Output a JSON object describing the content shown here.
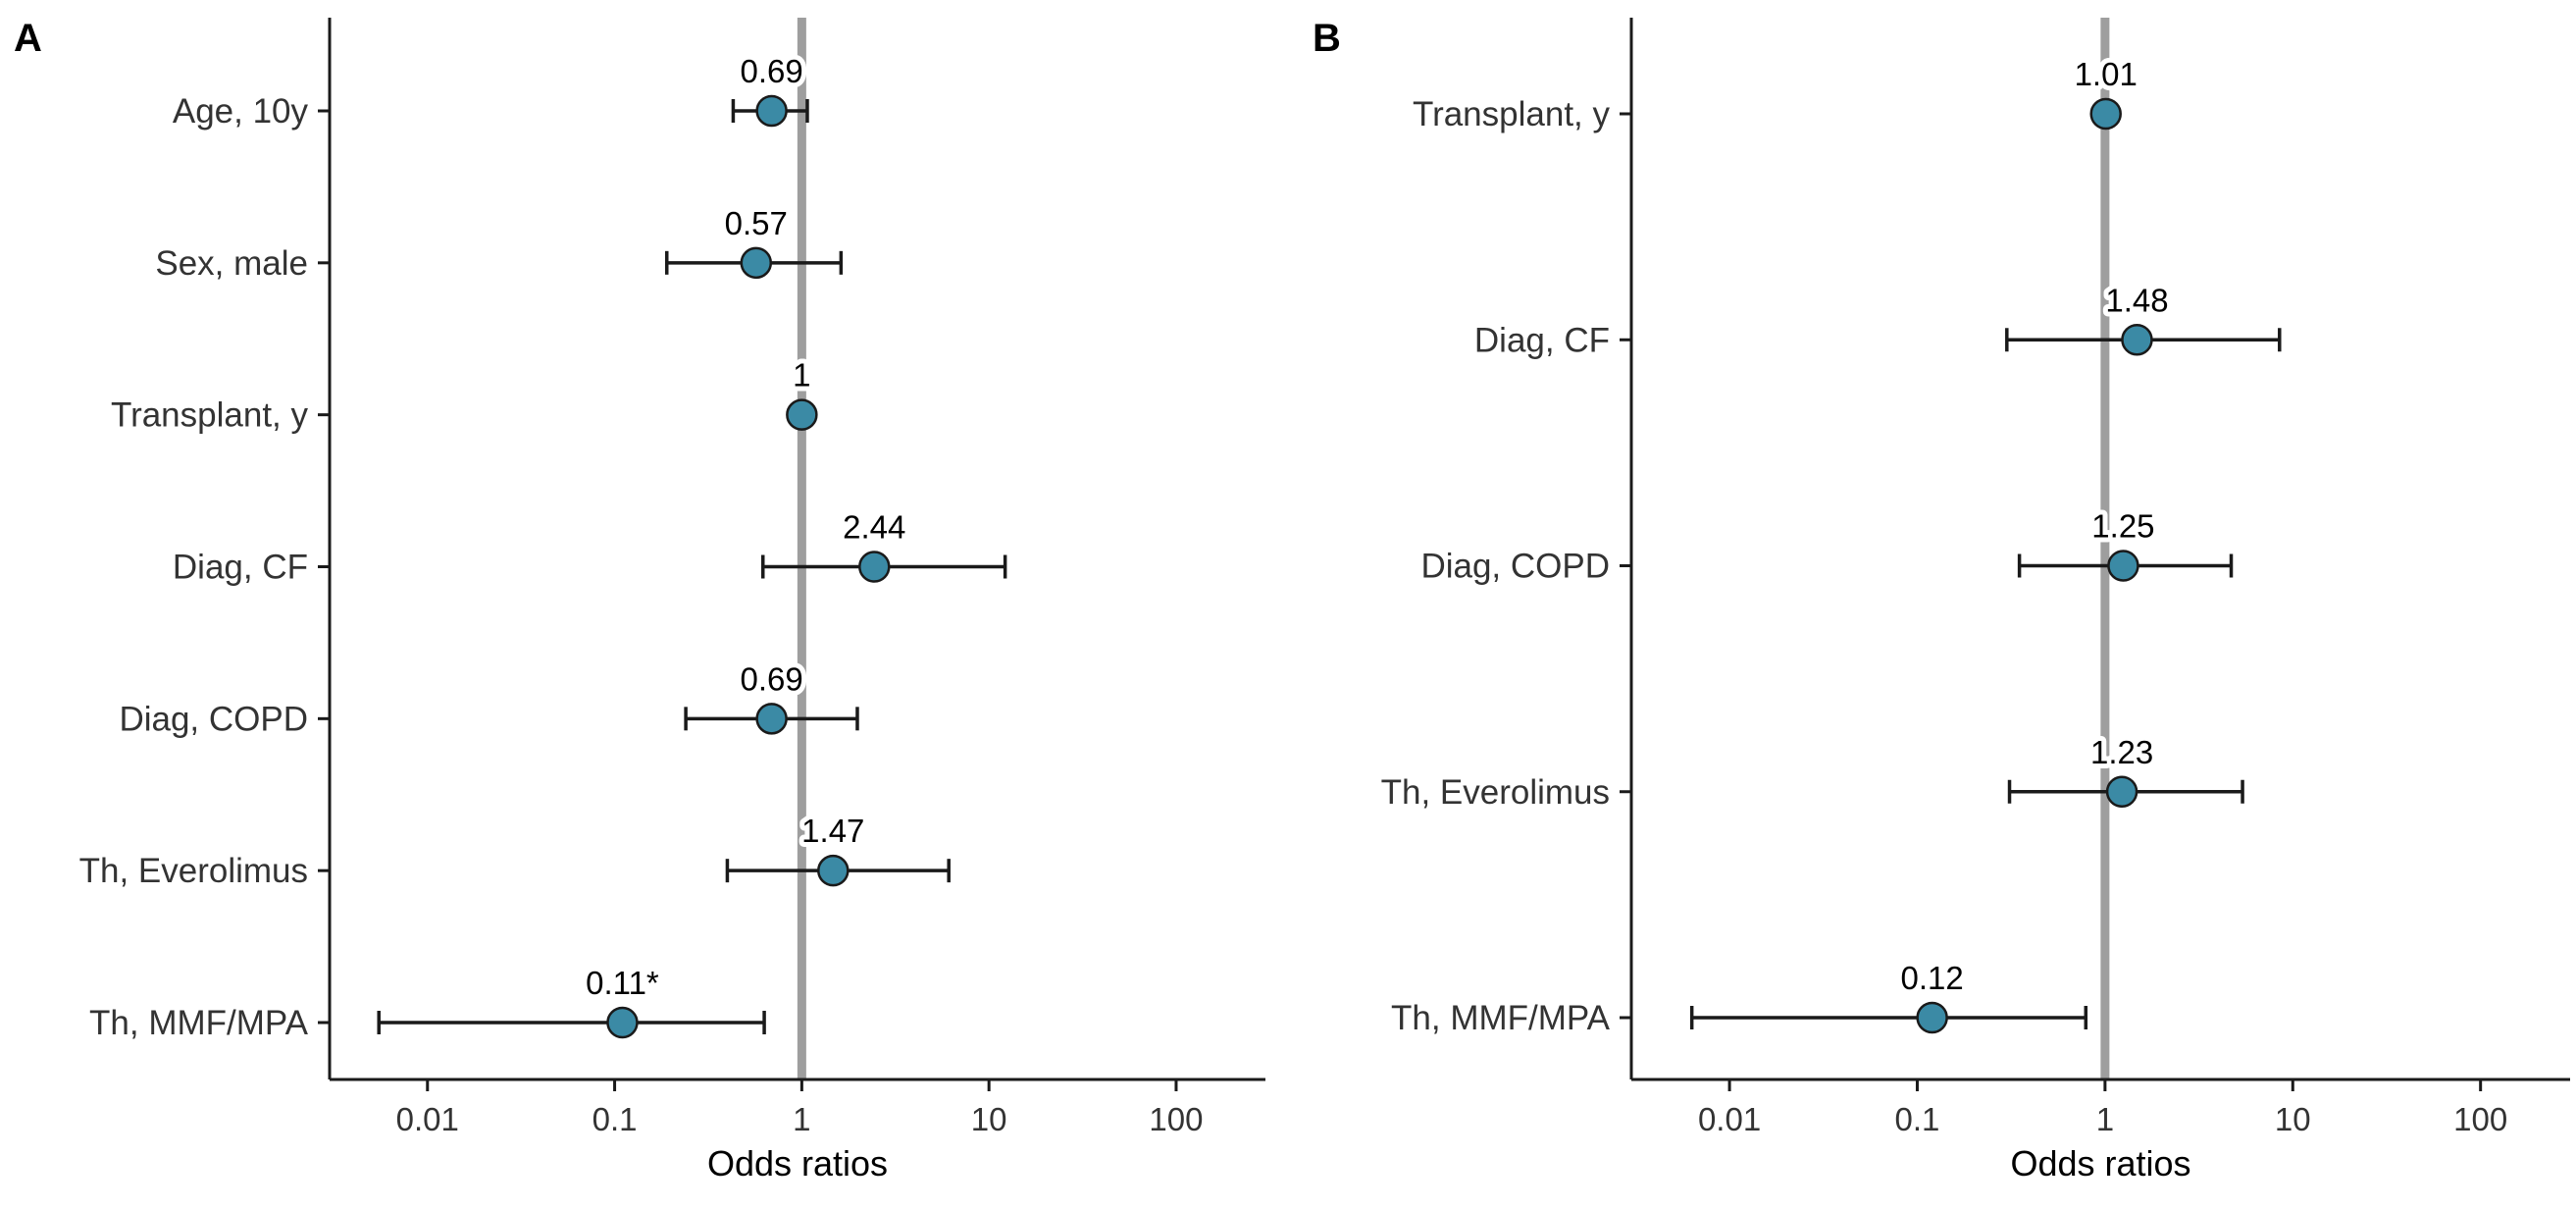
{
  "chart_data": [
    {
      "type": "scatter",
      "panel_label": "A",
      "title": "",
      "xlabel": "Odds ratios",
      "ylabel": "",
      "x_scale": "log",
      "xlim": [
        0.003,
        300
      ],
      "x_ticks": [
        0.01,
        0.1,
        1,
        10,
        100
      ],
      "x_tick_labels": [
        "0.01",
        "0.1",
        "1",
        "10",
        "100"
      ],
      "reference_line": 1,
      "grid": false,
      "categories": [
        "Age, 10y",
        "Sex, male",
        "Transplant, y",
        "Diag, CF",
        "Diag, COPD",
        "Th, Everolimus",
        "Th, MMF/MPA"
      ],
      "points": [
        {
          "label": "Age, 10y",
          "or": 0.69,
          "ci_low": 0.43,
          "ci_high": 1.07,
          "text": "0.69"
        },
        {
          "label": "Sex, male",
          "or": 0.57,
          "ci_low": 0.19,
          "ci_high": 1.62,
          "text": "0.57"
        },
        {
          "label": "Transplant, y",
          "or": 1.0,
          "ci_low": 0.99,
          "ci_high": 1.01,
          "text": "1"
        },
        {
          "label": "Diag, CF",
          "or": 2.44,
          "ci_low": 0.62,
          "ci_high": 12.2,
          "text": "2.44"
        },
        {
          "label": "Diag, COPD",
          "or": 0.69,
          "ci_low": 0.24,
          "ci_high": 1.98,
          "text": "0.69"
        },
        {
          "label": "Th, Everolimus",
          "or": 1.47,
          "ci_low": 0.4,
          "ci_high": 6.1,
          "text": "1.47"
        },
        {
          "label": "Th, MMF/MPA",
          "or": 0.11,
          "ci_low": 0.0055,
          "ci_high": 0.63,
          "text": "0.11*"
        }
      ]
    },
    {
      "type": "scatter",
      "panel_label": "B",
      "title": "",
      "xlabel": "Odds ratios",
      "ylabel": "",
      "x_scale": "log",
      "xlim": [
        0.003,
        300
      ],
      "x_ticks": [
        0.01,
        0.1,
        1,
        10,
        100
      ],
      "x_tick_labels": [
        "0.01",
        "0.1",
        "1",
        "10",
        "100"
      ],
      "reference_line": 1,
      "grid": false,
      "categories": [
        "Transplant, y",
        "Diag, CF",
        "Diag, COPD",
        "Th, Everolimus",
        "Th, MMF/MPA"
      ],
      "points": [
        {
          "label": "Transplant, y",
          "or": 1.01,
          "ci_low": 1.0,
          "ci_high": 1.02,
          "text": "1.01"
        },
        {
          "label": "Diag, CF",
          "or": 1.48,
          "ci_low": 0.3,
          "ci_high": 8.5,
          "text": "1.48"
        },
        {
          "label": "Diag, COPD",
          "or": 1.25,
          "ci_low": 0.35,
          "ci_high": 4.7,
          "text": "1.25"
        },
        {
          "label": "Th, Everolimus",
          "or": 1.23,
          "ci_low": 0.31,
          "ci_high": 5.4,
          "text": "1.23"
        },
        {
          "label": "Th, MMF/MPA",
          "or": 0.12,
          "ci_low": 0.0063,
          "ci_high": 0.79,
          "text": "0.12"
        }
      ]
    }
  ],
  "colors": {
    "point_fill": "#3b8aa5",
    "point_stroke": "#1a1a1a",
    "reference_line": "#9e9e9e",
    "error_bar": "#1a1a1a",
    "axis": "#1a1a1a"
  }
}
